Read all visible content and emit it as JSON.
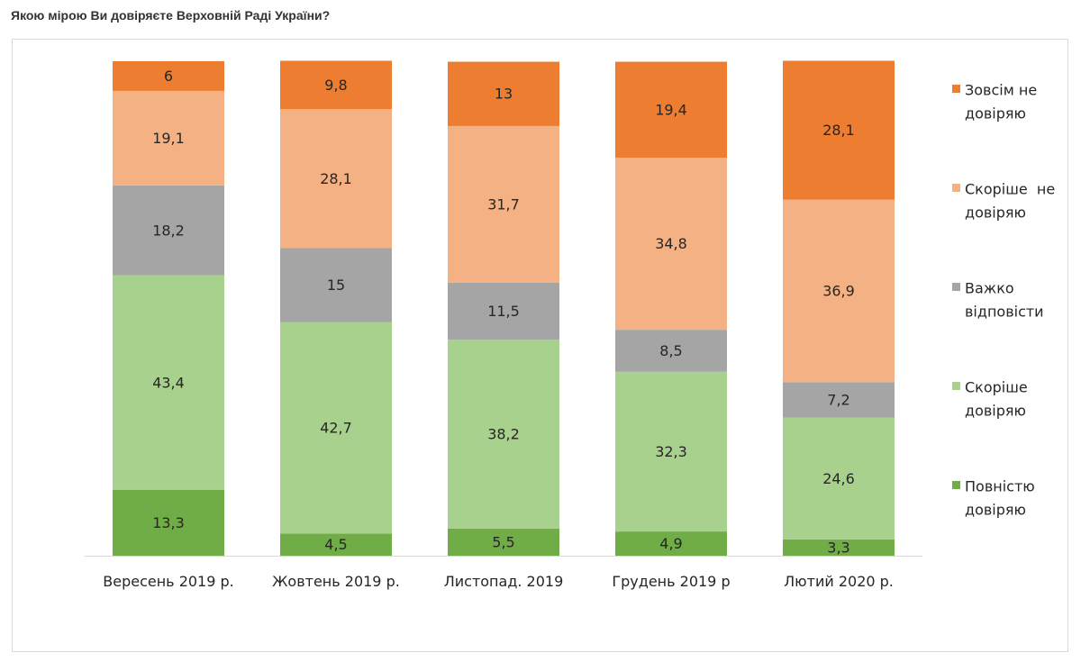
{
  "title": "Якою мірою Ви довіряєте Верховній Раді України?",
  "chart_data": {
    "type": "bar",
    "stacked": true,
    "categories": [
      "Вересень 2019 р.",
      "Жовтень 2019 р.",
      "Листопад. 2019",
      "Грудень 2019 р",
      "Лютий 2020 р."
    ],
    "series": [
      {
        "name": "Повністю довіряю",
        "legend_lines": [
          "Повністю",
          "довіряю"
        ],
        "color": "#70ad47",
        "values": [
          13.3,
          4.5,
          5.5,
          4.9,
          3.3
        ],
        "labels": [
          "13,3",
          "4,5",
          "5,5",
          "4,9",
          "3,3"
        ]
      },
      {
        "name": "Скоріше довіряю",
        "legend_lines": [
          "Скоріше",
          "довіряю"
        ],
        "color": "#a9d18e",
        "values": [
          43.4,
          42.7,
          38.2,
          32.3,
          24.6
        ],
        "labels": [
          "43,4",
          "42,7",
          "38,2",
          "32,3",
          "24,6"
        ]
      },
      {
        "name": "Важко відповісти",
        "legend_lines": [
          "Важко",
          "відповісти"
        ],
        "color": "#a5a5a5",
        "values": [
          18.2,
          15,
          11.5,
          8.5,
          7.2
        ],
        "labels": [
          "18,2",
          "15",
          "11,5",
          "8,5",
          "7,2"
        ]
      },
      {
        "name": "Скоріше не довіряю",
        "legend_lines": [
          "Скоріше  не",
          "довіряю"
        ],
        "color": "#f4b183",
        "values": [
          19.1,
          28.1,
          31.7,
          34.8,
          36.9
        ],
        "labels": [
          "19,1",
          "28,1",
          "31,7",
          "34,8",
          "36,9"
        ]
      },
      {
        "name": "Зовсім не довіряю",
        "legend_lines": [
          "Зовсім не",
          "довіряю"
        ],
        "color": "#ed7d31",
        "values": [
          6,
          9.8,
          13,
          19.4,
          28.1
        ],
        "labels": [
          "6",
          "9,8",
          "13",
          "19,4",
          "28,1"
        ]
      }
    ],
    "ylim": [
      0,
      100
    ],
    "xlabel": "",
    "ylabel": "",
    "grid": false,
    "legend_position": "right"
  }
}
